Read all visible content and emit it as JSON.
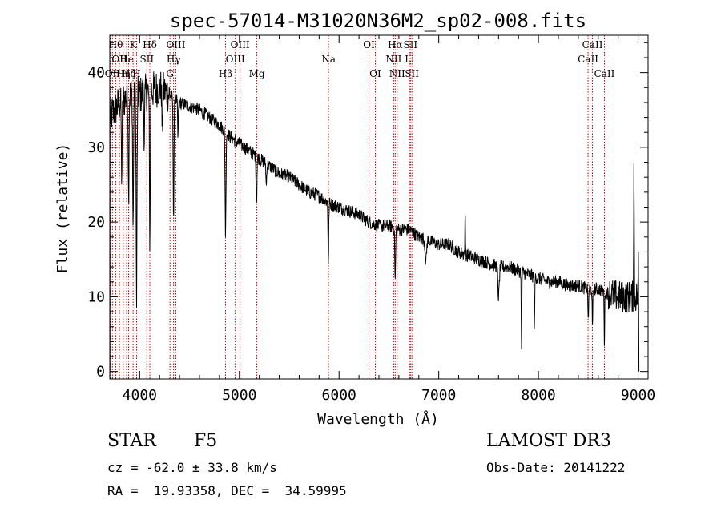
{
  "chart_data": {
    "type": "line",
    "title": "spec-57014-M31020N36M2_sp02-008.fits",
    "xlabel": "Wavelength (Å)",
    "ylabel": "Flux (relative)",
    "xlim": [
      3700,
      9100
    ],
    "ylim": [
      -1,
      45
    ],
    "xticks": [
      4000,
      5000,
      6000,
      7000,
      8000,
      9000
    ],
    "yticks": [
      0,
      10,
      20,
      30,
      40
    ],
    "grid": false,
    "continuum": [
      [
        3700,
        34
      ],
      [
        3800,
        36
      ],
      [
        3900,
        37
      ],
      [
        4000,
        37
      ],
      [
        4100,
        37.5
      ],
      [
        4200,
        38
      ],
      [
        4300,
        37
      ],
      [
        4400,
        36
      ],
      [
        4500,
        35.5
      ],
      [
        4600,
        35
      ],
      [
        4700,
        34
      ],
      [
        4800,
        33
      ],
      [
        4900,
        31.5
      ],
      [
        5000,
        30.5
      ],
      [
        5100,
        29.5
      ],
      [
        5200,
        28.5
      ],
      [
        5300,
        27.5
      ],
      [
        5400,
        26.5
      ],
      [
        5500,
        26
      ],
      [
        5600,
        25
      ],
      [
        5700,
        24
      ],
      [
        5800,
        23.5
      ],
      [
        5900,
        22.5
      ],
      [
        6000,
        22
      ],
      [
        6100,
        21.5
      ],
      [
        6200,
        21
      ],
      [
        6300,
        20
      ],
      [
        6400,
        19.5
      ],
      [
        6500,
        19.5
      ],
      [
        6600,
        19
      ],
      [
        6700,
        19
      ],
      [
        6800,
        18
      ],
      [
        6900,
        17.5
      ],
      [
        7000,
        17
      ],
      [
        7100,
        17
      ],
      [
        7200,
        16
      ],
      [
        7300,
        15.5
      ],
      [
        7400,
        15
      ],
      [
        7500,
        14.5
      ],
      [
        7600,
        14
      ],
      [
        7700,
        14
      ],
      [
        7800,
        13.5
      ],
      [
        7900,
        13
      ],
      [
        8000,
        12.5
      ],
      [
        8100,
        12
      ],
      [
        8200,
        12
      ],
      [
        8300,
        11.5
      ],
      [
        8400,
        11.5
      ],
      [
        8500,
        11
      ],
      [
        8600,
        11
      ],
      [
        8700,
        10.5
      ],
      [
        8800,
        10
      ],
      [
        8900,
        10
      ],
      [
        9000,
        10
      ]
    ],
    "absorption_features": [
      {
        "wavelength": 3820,
        "depth": 10,
        "width": 6
      },
      {
        "wavelength": 3889,
        "depth": 14,
        "width": 5
      },
      {
        "wavelength": 3934,
        "depth": 18,
        "width": 6
      },
      {
        "wavelength": 3969,
        "depth": 28,
        "width": 6
      },
      {
        "wavelength": 4046,
        "depth": 6,
        "width": 5
      },
      {
        "wavelength": 4102,
        "depth": 20,
        "width": 6
      },
      {
        "wavelength": 4227,
        "depth": 6,
        "width": 5
      },
      {
        "wavelength": 4340,
        "depth": 16,
        "width": 6
      },
      {
        "wavelength": 4384,
        "depth": 5,
        "width": 5
      },
      {
        "wavelength": 4861,
        "depth": 14,
        "width": 6
      },
      {
        "wavelength": 5172,
        "depth": 6,
        "width": 6
      },
      {
        "wavelength": 5270,
        "depth": 3,
        "width": 5
      },
      {
        "wavelength": 5893,
        "depth": 8,
        "width": 5
      },
      {
        "wavelength": 6563,
        "depth": 7,
        "width": 6
      },
      {
        "wavelength": 6870,
        "depth": 3,
        "width": 10
      },
      {
        "wavelength": 7600,
        "depth": 4,
        "width": 10
      },
      {
        "wavelength": 7830,
        "depth": 11,
        "width": 4
      },
      {
        "wavelength": 7960,
        "depth": 7,
        "width": 4
      },
      {
        "wavelength": 8500,
        "depth": 5,
        "width": 4
      },
      {
        "wavelength": 8542,
        "depth": 6,
        "width": 4
      },
      {
        "wavelength": 8662,
        "depth": 7,
        "width": 4
      }
    ],
    "spikes": [
      {
        "wavelength": 7265,
        "height": 5
      },
      {
        "wavelength": 8958,
        "height": 18
      },
      {
        "wavelength": 9005,
        "height": 8
      }
    ],
    "line_markers": [
      {
        "wavelength": 3704,
        "label": "",
        "row": 0
      },
      {
        "wavelength": 3727,
        "label": "OII",
        "row": 2
      },
      {
        "wavelength": 3760,
        "label": "Hθ",
        "row": 0
      },
      {
        "wavelength": 3797,
        "label": "OII",
        "row": 1
      },
      {
        "wavelength": 3835,
        "label": "Hη",
        "row": 2
      },
      {
        "wavelength": 3869,
        "label": "He",
        "row": 1
      },
      {
        "wavelength": 3889,
        "label": "Hζ",
        "row": 2
      },
      {
        "wavelength": 3934,
        "label": "K",
        "row": 0
      },
      {
        "wavelength": 3969,
        "label": "H",
        "row": 2
      },
      {
        "wavelength": 4072,
        "label": "SII",
        "row": 1
      },
      {
        "wavelength": 4102,
        "label": "Hδ",
        "row": 0
      },
      {
        "wavelength": 4304,
        "label": "G",
        "row": 2
      },
      {
        "wavelength": 4340,
        "label": "Hγ",
        "row": 1
      },
      {
        "wavelength": 4363,
        "label": "OIII",
        "row": 0
      },
      {
        "wavelength": 4861,
        "label": "Hβ",
        "row": 2
      },
      {
        "wavelength": 4959,
        "label": "OIII",
        "row": 1
      },
      {
        "wavelength": 5007,
        "label": "OIII",
        "row": 0
      },
      {
        "wavelength": 5175,
        "label": "Mg",
        "row": 2
      },
      {
        "wavelength": 5894,
        "label": "Na",
        "row": 1
      },
      {
        "wavelength": 6300,
        "label": "OI",
        "row": 0
      },
      {
        "wavelength": 6364,
        "label": "OI",
        "row": 2
      },
      {
        "wavelength": 6548,
        "label": "NII",
        "row": 1
      },
      {
        "wavelength": 6563,
        "label": "Hα",
        "row": 0
      },
      {
        "wavelength": 6583,
        "label": "NII",
        "row": 2
      },
      {
        "wavelength": 6707,
        "label": "Li",
        "row": 1
      },
      {
        "wavelength": 6716,
        "label": "SII",
        "row": 0
      },
      {
        "wavelength": 6731,
        "label": "SII",
        "row": 2
      },
      {
        "wavelength": 8498,
        "label": "CaII",
        "row": 1
      },
      {
        "wavelength": 8542,
        "label": "CaII",
        "row": 0
      },
      {
        "wavelength": 8662,
        "label": "CaII",
        "row": 2
      }
    ],
    "colors": {
      "spectrum": "#000000",
      "marker": "#cc0000",
      "axes": "#000000"
    }
  },
  "info": {
    "object_class": "STAR",
    "subclass": "F5",
    "survey": "LAMOST DR3",
    "redshift_line": "cz = -62.0 ± 33.8 km/s",
    "obs_date_line": "Obs-Date: 20141222",
    "coords_line": "RA =  19.93358, DEC =  34.59995"
  }
}
